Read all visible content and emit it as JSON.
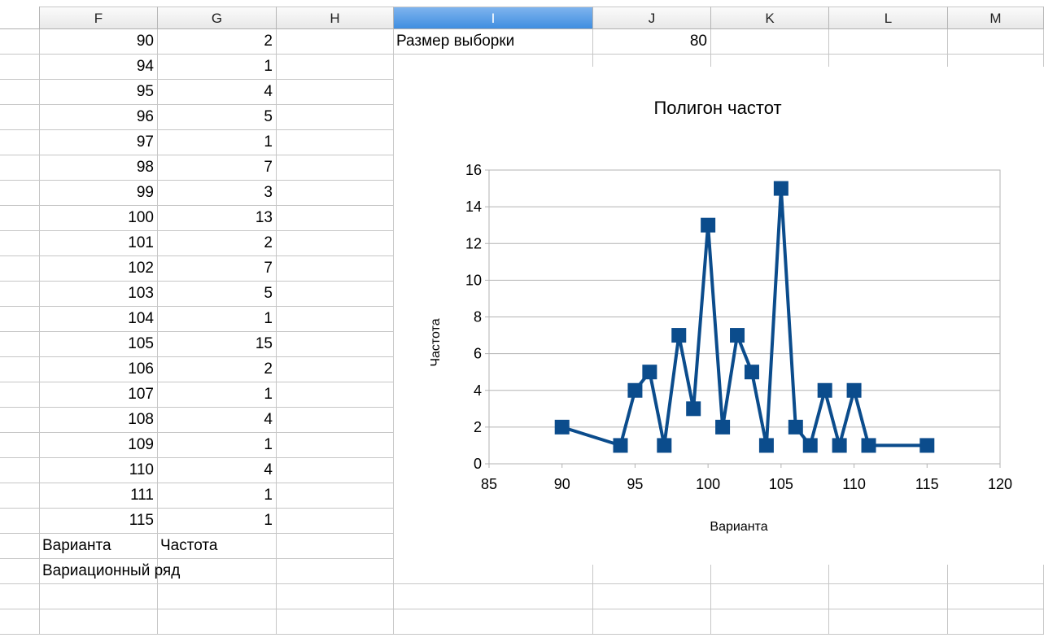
{
  "column_headers": [
    "F",
    "G",
    "H",
    "I",
    "J",
    "K",
    "L",
    "M"
  ],
  "selected_column": "I",
  "table": {
    "rows": [
      [
        "90",
        "2"
      ],
      [
        "94",
        "1"
      ],
      [
        "95",
        "4"
      ],
      [
        "96",
        "5"
      ],
      [
        "97",
        "1"
      ],
      [
        "98",
        "7"
      ],
      [
        "99",
        "3"
      ],
      [
        "100",
        "13"
      ],
      [
        "101",
        "2"
      ],
      [
        "102",
        "7"
      ],
      [
        "103",
        "5"
      ],
      [
        "104",
        "1"
      ],
      [
        "105",
        "15"
      ],
      [
        "106",
        "2"
      ],
      [
        "107",
        "1"
      ],
      [
        "108",
        "4"
      ],
      [
        "109",
        "1"
      ],
      [
        "110",
        "4"
      ],
      [
        "111",
        "1"
      ],
      [
        "115",
        "1"
      ]
    ],
    "footer_labels": [
      "Варианта",
      "Частота"
    ],
    "series_label": "Вариационный ряд"
  },
  "sample": {
    "label": "Размер выборки",
    "value": "80"
  },
  "chart_data": {
    "type": "line",
    "title": "Полигон частот",
    "xlabel": "Варианта",
    "ylabel": "Частота",
    "xlim": [
      85,
      120
    ],
    "ylim": [
      0,
      16
    ],
    "xticks": [
      "85",
      "90",
      "95",
      "100",
      "105",
      "110",
      "115",
      "120"
    ],
    "yticks": [
      "0",
      "2",
      "4",
      "6",
      "8",
      "10",
      "12",
      "14",
      "16"
    ],
    "grid": "horizontal",
    "series": [
      {
        "x": [
          90,
          94,
          95,
          96,
          97,
          98,
          99,
          100,
          101,
          102,
          103,
          104,
          105,
          106,
          107,
          108,
          109,
          110,
          111,
          115
        ],
        "y": [
          2,
          1,
          4,
          5,
          1,
          7,
          3,
          13,
          2,
          7,
          5,
          1,
          15,
          2,
          1,
          4,
          1,
          4,
          1,
          1
        ],
        "color": "#0b4c8c",
        "marker": "square"
      }
    ]
  }
}
